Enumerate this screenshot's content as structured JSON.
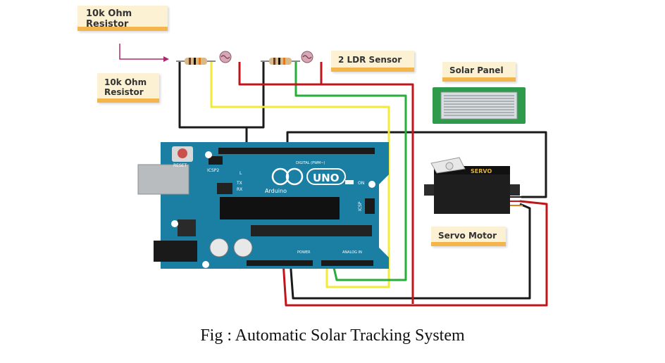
{
  "labels": {
    "resistor_top": "10k Ohm Resistor",
    "resistor_side": "10k Ohm Resistor",
    "ldr_sensor": "2 LDR Sensor",
    "solar_panel": "Solar Panel",
    "servo_motor": "Servo Motor"
  },
  "board": {
    "brand": "Arduino",
    "model": "UNO",
    "reset": "RESET",
    "icsp2": "ICSP2",
    "icsp": "ICSP",
    "digital": "DIGITAL (PWM~)",
    "power": "POWER",
    "analog_in": "ANALOG IN",
    "on": "ON",
    "l": "L",
    "tx": "TX",
    "rx": "RX"
  },
  "servo_text": "SERVO",
  "caption": "Fig : Automatic Solar Tracking System",
  "colors": {
    "wire_black": "#1a1a1a",
    "wire_red": "#c0161b",
    "wire_yellow": "#f2e93a",
    "wire_green": "#27ae3a",
    "board": "#1b7fa3",
    "label_accent": "#f4b54c"
  }
}
